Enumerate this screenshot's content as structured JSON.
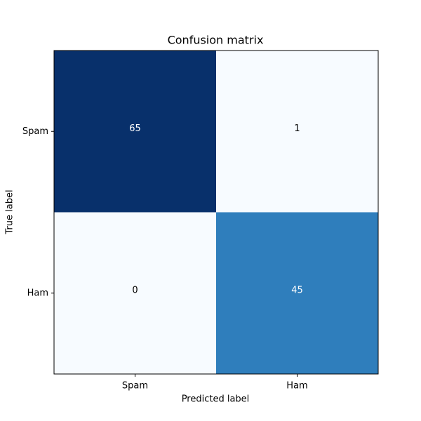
{
  "chart_data": {
    "type": "heatmap",
    "title": "Confusion matrix",
    "x_label": "Predicted label",
    "y_label": "True label",
    "x_categories": [
      "Spam",
      "Ham"
    ],
    "y_categories": [
      "Spam",
      "Ham"
    ],
    "values": [
      [
        65,
        1
      ],
      [
        0,
        45
      ]
    ],
    "cell_colors": [
      [
        "#08306b",
        "#f7fbff"
      ],
      [
        "#f7fbff",
        "#2f7ebc"
      ]
    ]
  }
}
